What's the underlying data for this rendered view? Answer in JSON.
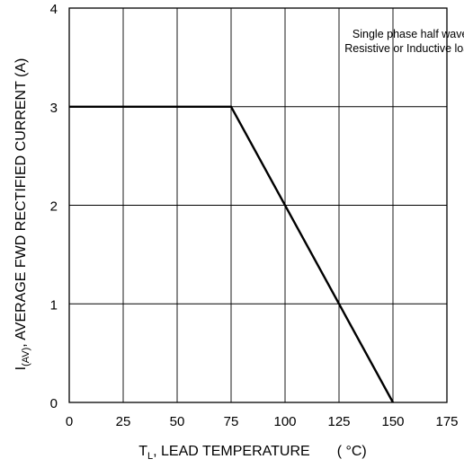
{
  "chart_data": {
    "type": "line",
    "x": [
      0,
      75,
      150
    ],
    "series": [
      {
        "values": [
          3,
          3,
          0
        ]
      }
    ],
    "x_ticks": [
      "0",
      "25",
      "50",
      "75",
      "100",
      "125",
      "150",
      "175"
    ],
    "y_ticks": [
      "0",
      "1",
      "2",
      "3",
      "4"
    ],
    "xlim": [
      0,
      175
    ],
    "ylim": [
      0,
      4
    ],
    "xlabel": {
      "pre": "T",
      "sub": "L",
      "post": ", LEAD TEMPERATURE",
      "unit": "( °C)"
    },
    "ylabel": {
      "pre": "I",
      "sub": "(AV)",
      "post": ", AVERAGE FWD RECTIFIED CURRENT (A)"
    },
    "annotations": [
      "Single phase half wave",
      "Resistive or Inductive load"
    ],
    "grid": true,
    "colors": {
      "line": "#000000",
      "grid": "#000000",
      "background": "#ffffff"
    }
  }
}
